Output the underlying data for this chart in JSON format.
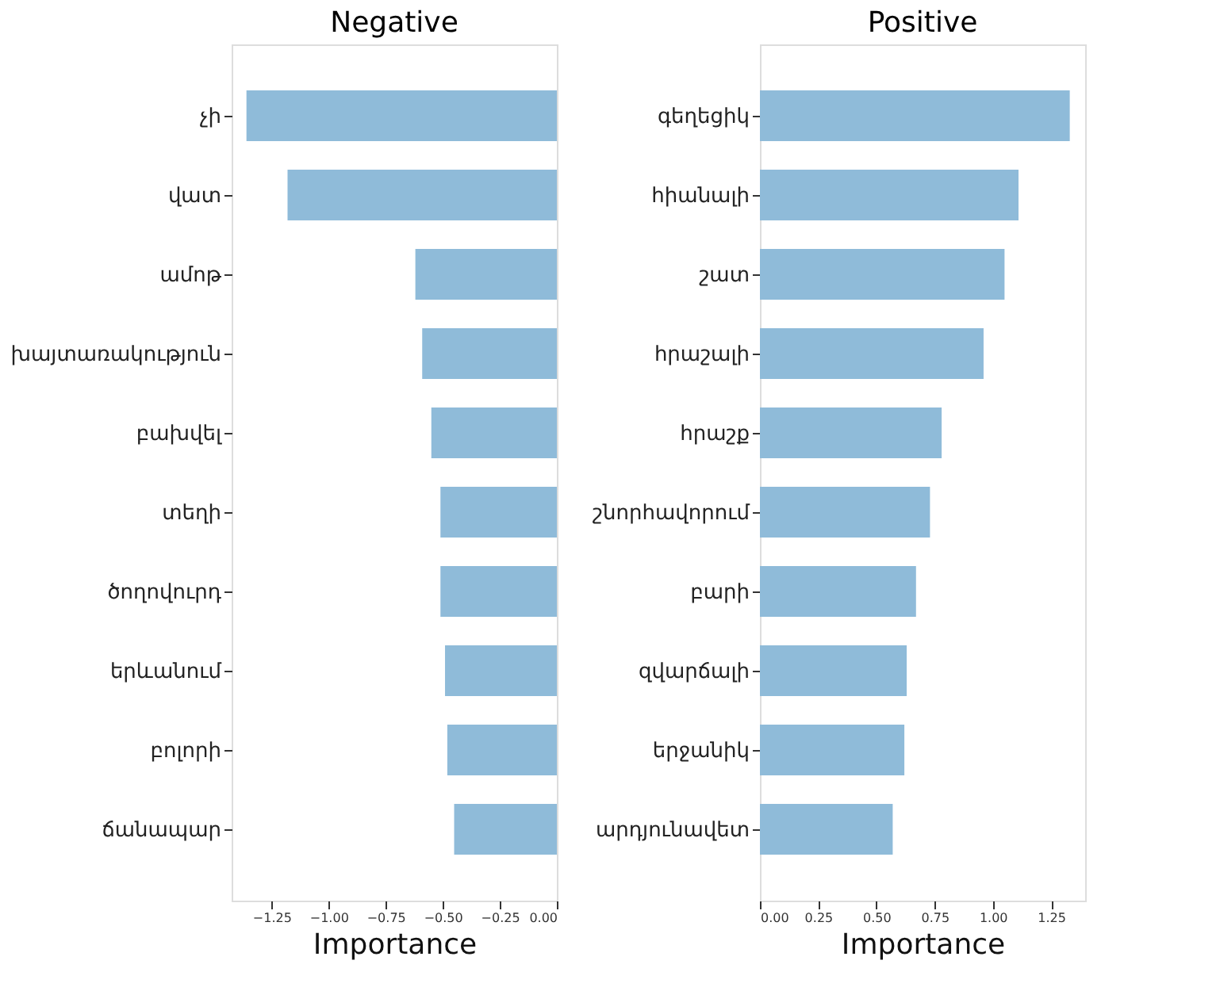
{
  "chart_data": [
    {
      "type": "bar",
      "orientation": "horizontal",
      "title": "Negative",
      "xlabel": "Importance",
      "categories": [
        "չի",
        "վատ",
        "ամոթ",
        "խայտառակություն",
        "բախվել",
        "տեղի",
        "ծողովուրդ",
        "երևանում",
        "բոլորի",
        "ճանապար"
      ],
      "values": [
        -1.36,
        -1.18,
        -0.62,
        -0.59,
        -0.55,
        -0.51,
        -0.51,
        -0.49,
        -0.48,
        -0.45
      ],
      "color": "#8fbbd9",
      "xlim": [
        -1.425,
        0
      ],
      "xticks": [
        {
          "value": -1.25,
          "label": "−1.25"
        },
        {
          "value": -1.0,
          "label": "−1.00"
        },
        {
          "value": -0.75,
          "label": "−0.75"
        },
        {
          "value": -0.5,
          "label": "−0.50"
        },
        {
          "value": -0.25,
          "label": "−0.25"
        },
        {
          "value": 0,
          "label": "0.00"
        }
      ],
      "grid": false
    },
    {
      "type": "bar",
      "orientation": "horizontal",
      "title": "Positive",
      "xlabel": "Importance",
      "categories": [
        "գեղեցիկ",
        "հիանալի",
        "շատ",
        "հրաշալի",
        "հրաշք",
        "շնորհավորում",
        "բարի",
        "զվարճալի",
        "երջանիկ",
        "արդյունավետ"
      ],
      "values": [
        1.33,
        1.11,
        1.05,
        0.96,
        0.78,
        0.73,
        0.67,
        0.63,
        0.62,
        0.57
      ],
      "color": "#8fbbd9",
      "xlim": [
        0,
        1.396
      ],
      "xticks": [
        {
          "value": 0,
          "label": "0.00"
        },
        {
          "value": 0.25,
          "label": "0.25"
        },
        {
          "value": 0.5,
          "label": "0.50"
        },
        {
          "value": 0.75,
          "label": "0.75"
        },
        {
          "value": 1.0,
          "label": "1.00"
        },
        {
          "value": 1.25,
          "label": "1.25"
        }
      ],
      "grid": false
    }
  ]
}
